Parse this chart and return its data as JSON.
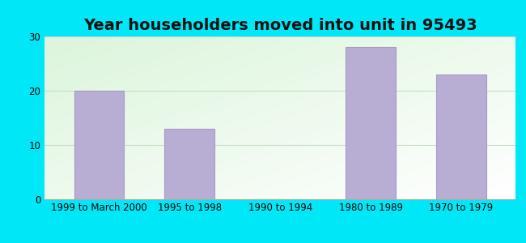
{
  "title": "Year householders moved into unit in 95493",
  "categories": [
    "1999 to March 2000",
    "1995 to 1998",
    "1990 to 1994",
    "1980 to 1989",
    "1970 to 1979"
  ],
  "values": [
    20,
    13,
    0,
    28,
    23
  ],
  "bar_color": "#b8aed4",
  "bar_edge_color": "#a898c8",
  "ylim": [
    0,
    30
  ],
  "yticks": [
    0,
    10,
    20,
    30
  ],
  "outer_background": "#00e8f8",
  "title_fontsize": 14,
  "tick_fontsize": 8.5,
  "grid_color": "#c8ddc8",
  "bg_top_left": "#d8f0d8",
  "bg_top_right": "#f8fffa",
  "bg_bottom_left": "#e8f8e8",
  "bg_bottom_right": "#ffffff"
}
